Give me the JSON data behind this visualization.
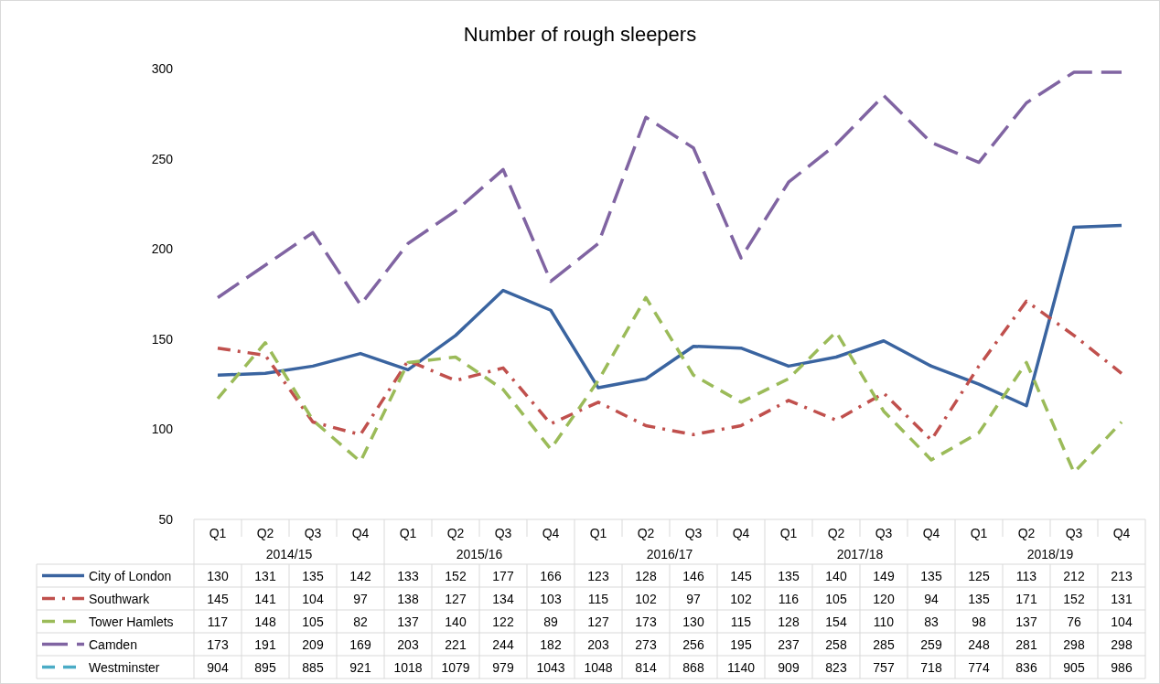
{
  "chart_data": {
    "type": "line",
    "title": "Number of rough sleepers",
    "categories": [
      "Q1",
      "Q2",
      "Q3",
      "Q4",
      "Q1",
      "Q2",
      "Q3",
      "Q4",
      "Q1",
      "Q2",
      "Q3",
      "Q4",
      "Q1",
      "Q2",
      "Q3",
      "Q4",
      "Q1",
      "Q2",
      "Q3",
      "Q4"
    ],
    "annotations": [
      "2014/15",
      "2015/16",
      "2016/17",
      "2017/18",
      "2018/19"
    ],
    "series": [
      {
        "name": "City of London",
        "color": "#3a64a0",
        "line_style": "solid",
        "values": [
          130,
          131,
          135,
          142,
          133,
          152,
          177,
          166,
          123,
          128,
          146,
          145,
          135,
          140,
          149,
          135,
          125,
          113,
          212,
          213
        ]
      },
      {
        "name": "Southwark",
        "color": "#c0504d",
        "line_style": "dashdot",
        "values": [
          145,
          141,
          104,
          97,
          138,
          127,
          134,
          103,
          115,
          102,
          97,
          102,
          116,
          105,
          120,
          94,
          135,
          171,
          152,
          131
        ]
      },
      {
        "name": "Tower Hamlets",
        "color": "#9bbb59",
        "line_style": "dashed",
        "values": [
          117,
          148,
          105,
          82,
          137,
          140,
          122,
          89,
          127,
          173,
          130,
          115,
          128,
          154,
          110,
          83,
          98,
          137,
          76,
          104
        ]
      },
      {
        "name": "Camden",
        "color": "#8064a2",
        "line_style": "longdash",
        "values": [
          173,
          191,
          209,
          169,
          203,
          221,
          244,
          182,
          203,
          273,
          256,
          195,
          237,
          258,
          285,
          259,
          248,
          281,
          298,
          298
        ]
      },
      {
        "name": "Westminster",
        "color": "#4bacc6",
        "line_style": "dashed",
        "values": [
          null,
          null,
          null,
          null,
          null,
          null,
          null,
          null,
          null,
          null,
          null,
          null,
          null,
          null,
          null,
          null,
          null,
          null,
          null,
          null
        ],
        "value_labels": [
          "904",
          "895",
          "885",
          "921",
          "1018",
          "1079",
          "979",
          "1043",
          "1048",
          "814",
          "868",
          "1140",
          "909",
          "823",
          "757",
          "718",
          "774",
          "836",
          "905",
          "986"
        ]
      }
    ],
    "ylim": [
      50,
      300
    ],
    "yticks": [
      50,
      100,
      150,
      200,
      250,
      300
    ],
    "grid": false,
    "legend": "bottom",
    "data_labels": true,
    "marker": "none"
  }
}
